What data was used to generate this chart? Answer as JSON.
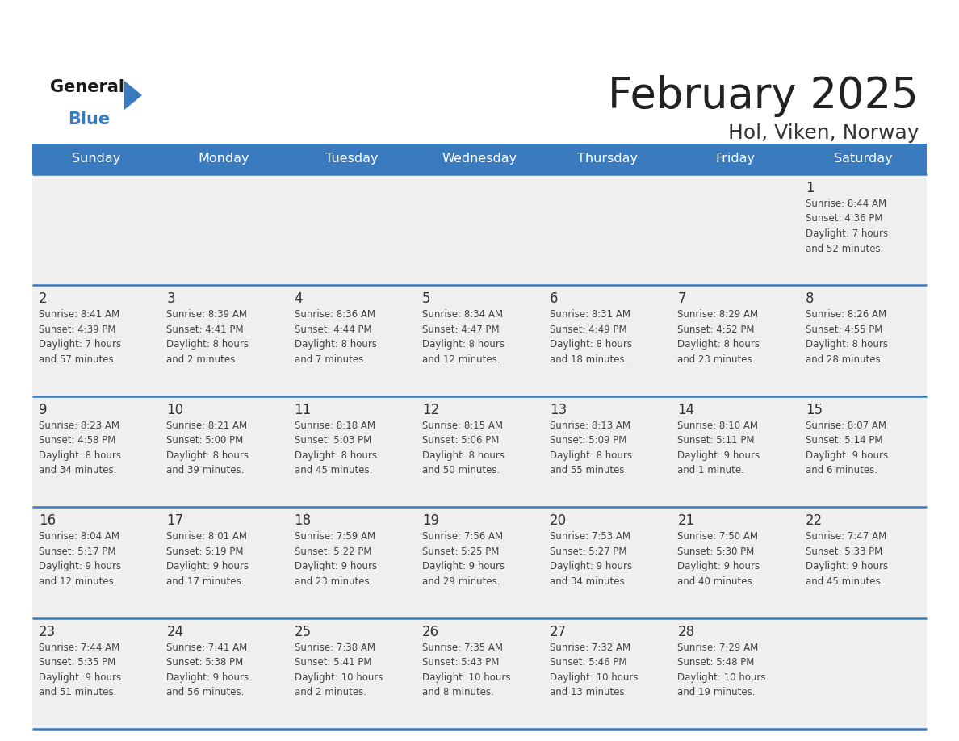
{
  "title": "February 2025",
  "subtitle": "Hol, Viken, Norway",
  "header_color": "#3a7bbf",
  "header_text_color": "#ffffff",
  "row_bg_color": "#efefef",
  "border_color": "#3a7bbf",
  "day_names": [
    "Sunday",
    "Monday",
    "Tuesday",
    "Wednesday",
    "Thursday",
    "Friday",
    "Saturday"
  ],
  "title_color": "#222222",
  "subtitle_color": "#333333",
  "day_number_color": "#333333",
  "info_color": "#444444",
  "logo_general_color": "#1a1a1a",
  "logo_blue_color": "#3a7bbf",
  "logo_triangle_color": "#3a7bbf",
  "weeks": [
    [
      {
        "day": 0,
        "info": ""
      },
      {
        "day": 0,
        "info": ""
      },
      {
        "day": 0,
        "info": ""
      },
      {
        "day": 0,
        "info": ""
      },
      {
        "day": 0,
        "info": ""
      },
      {
        "day": 0,
        "info": ""
      },
      {
        "day": 1,
        "info": "Sunrise: 8:44 AM\nSunset: 4:36 PM\nDaylight: 7 hours\nand 52 minutes."
      }
    ],
    [
      {
        "day": 2,
        "info": "Sunrise: 8:41 AM\nSunset: 4:39 PM\nDaylight: 7 hours\nand 57 minutes."
      },
      {
        "day": 3,
        "info": "Sunrise: 8:39 AM\nSunset: 4:41 PM\nDaylight: 8 hours\nand 2 minutes."
      },
      {
        "day": 4,
        "info": "Sunrise: 8:36 AM\nSunset: 4:44 PM\nDaylight: 8 hours\nand 7 minutes."
      },
      {
        "day": 5,
        "info": "Sunrise: 8:34 AM\nSunset: 4:47 PM\nDaylight: 8 hours\nand 12 minutes."
      },
      {
        "day": 6,
        "info": "Sunrise: 8:31 AM\nSunset: 4:49 PM\nDaylight: 8 hours\nand 18 minutes."
      },
      {
        "day": 7,
        "info": "Sunrise: 8:29 AM\nSunset: 4:52 PM\nDaylight: 8 hours\nand 23 minutes."
      },
      {
        "day": 8,
        "info": "Sunrise: 8:26 AM\nSunset: 4:55 PM\nDaylight: 8 hours\nand 28 minutes."
      }
    ],
    [
      {
        "day": 9,
        "info": "Sunrise: 8:23 AM\nSunset: 4:58 PM\nDaylight: 8 hours\nand 34 minutes."
      },
      {
        "day": 10,
        "info": "Sunrise: 8:21 AM\nSunset: 5:00 PM\nDaylight: 8 hours\nand 39 minutes."
      },
      {
        "day": 11,
        "info": "Sunrise: 8:18 AM\nSunset: 5:03 PM\nDaylight: 8 hours\nand 45 minutes."
      },
      {
        "day": 12,
        "info": "Sunrise: 8:15 AM\nSunset: 5:06 PM\nDaylight: 8 hours\nand 50 minutes."
      },
      {
        "day": 13,
        "info": "Sunrise: 8:13 AM\nSunset: 5:09 PM\nDaylight: 8 hours\nand 55 minutes."
      },
      {
        "day": 14,
        "info": "Sunrise: 8:10 AM\nSunset: 5:11 PM\nDaylight: 9 hours\nand 1 minute."
      },
      {
        "day": 15,
        "info": "Sunrise: 8:07 AM\nSunset: 5:14 PM\nDaylight: 9 hours\nand 6 minutes."
      }
    ],
    [
      {
        "day": 16,
        "info": "Sunrise: 8:04 AM\nSunset: 5:17 PM\nDaylight: 9 hours\nand 12 minutes."
      },
      {
        "day": 17,
        "info": "Sunrise: 8:01 AM\nSunset: 5:19 PM\nDaylight: 9 hours\nand 17 minutes."
      },
      {
        "day": 18,
        "info": "Sunrise: 7:59 AM\nSunset: 5:22 PM\nDaylight: 9 hours\nand 23 minutes."
      },
      {
        "day": 19,
        "info": "Sunrise: 7:56 AM\nSunset: 5:25 PM\nDaylight: 9 hours\nand 29 minutes."
      },
      {
        "day": 20,
        "info": "Sunrise: 7:53 AM\nSunset: 5:27 PM\nDaylight: 9 hours\nand 34 minutes."
      },
      {
        "day": 21,
        "info": "Sunrise: 7:50 AM\nSunset: 5:30 PM\nDaylight: 9 hours\nand 40 minutes."
      },
      {
        "day": 22,
        "info": "Sunrise: 7:47 AM\nSunset: 5:33 PM\nDaylight: 9 hours\nand 45 minutes."
      }
    ],
    [
      {
        "day": 23,
        "info": "Sunrise: 7:44 AM\nSunset: 5:35 PM\nDaylight: 9 hours\nand 51 minutes."
      },
      {
        "day": 24,
        "info": "Sunrise: 7:41 AM\nSunset: 5:38 PM\nDaylight: 9 hours\nand 56 minutes."
      },
      {
        "day": 25,
        "info": "Sunrise: 7:38 AM\nSunset: 5:41 PM\nDaylight: 10 hours\nand 2 minutes."
      },
      {
        "day": 26,
        "info": "Sunrise: 7:35 AM\nSunset: 5:43 PM\nDaylight: 10 hours\nand 8 minutes."
      },
      {
        "day": 27,
        "info": "Sunrise: 7:32 AM\nSunset: 5:46 PM\nDaylight: 10 hours\nand 13 minutes."
      },
      {
        "day": 28,
        "info": "Sunrise: 7:29 AM\nSunset: 5:48 PM\nDaylight: 10 hours\nand 19 minutes."
      },
      {
        "day": 0,
        "info": ""
      }
    ]
  ]
}
